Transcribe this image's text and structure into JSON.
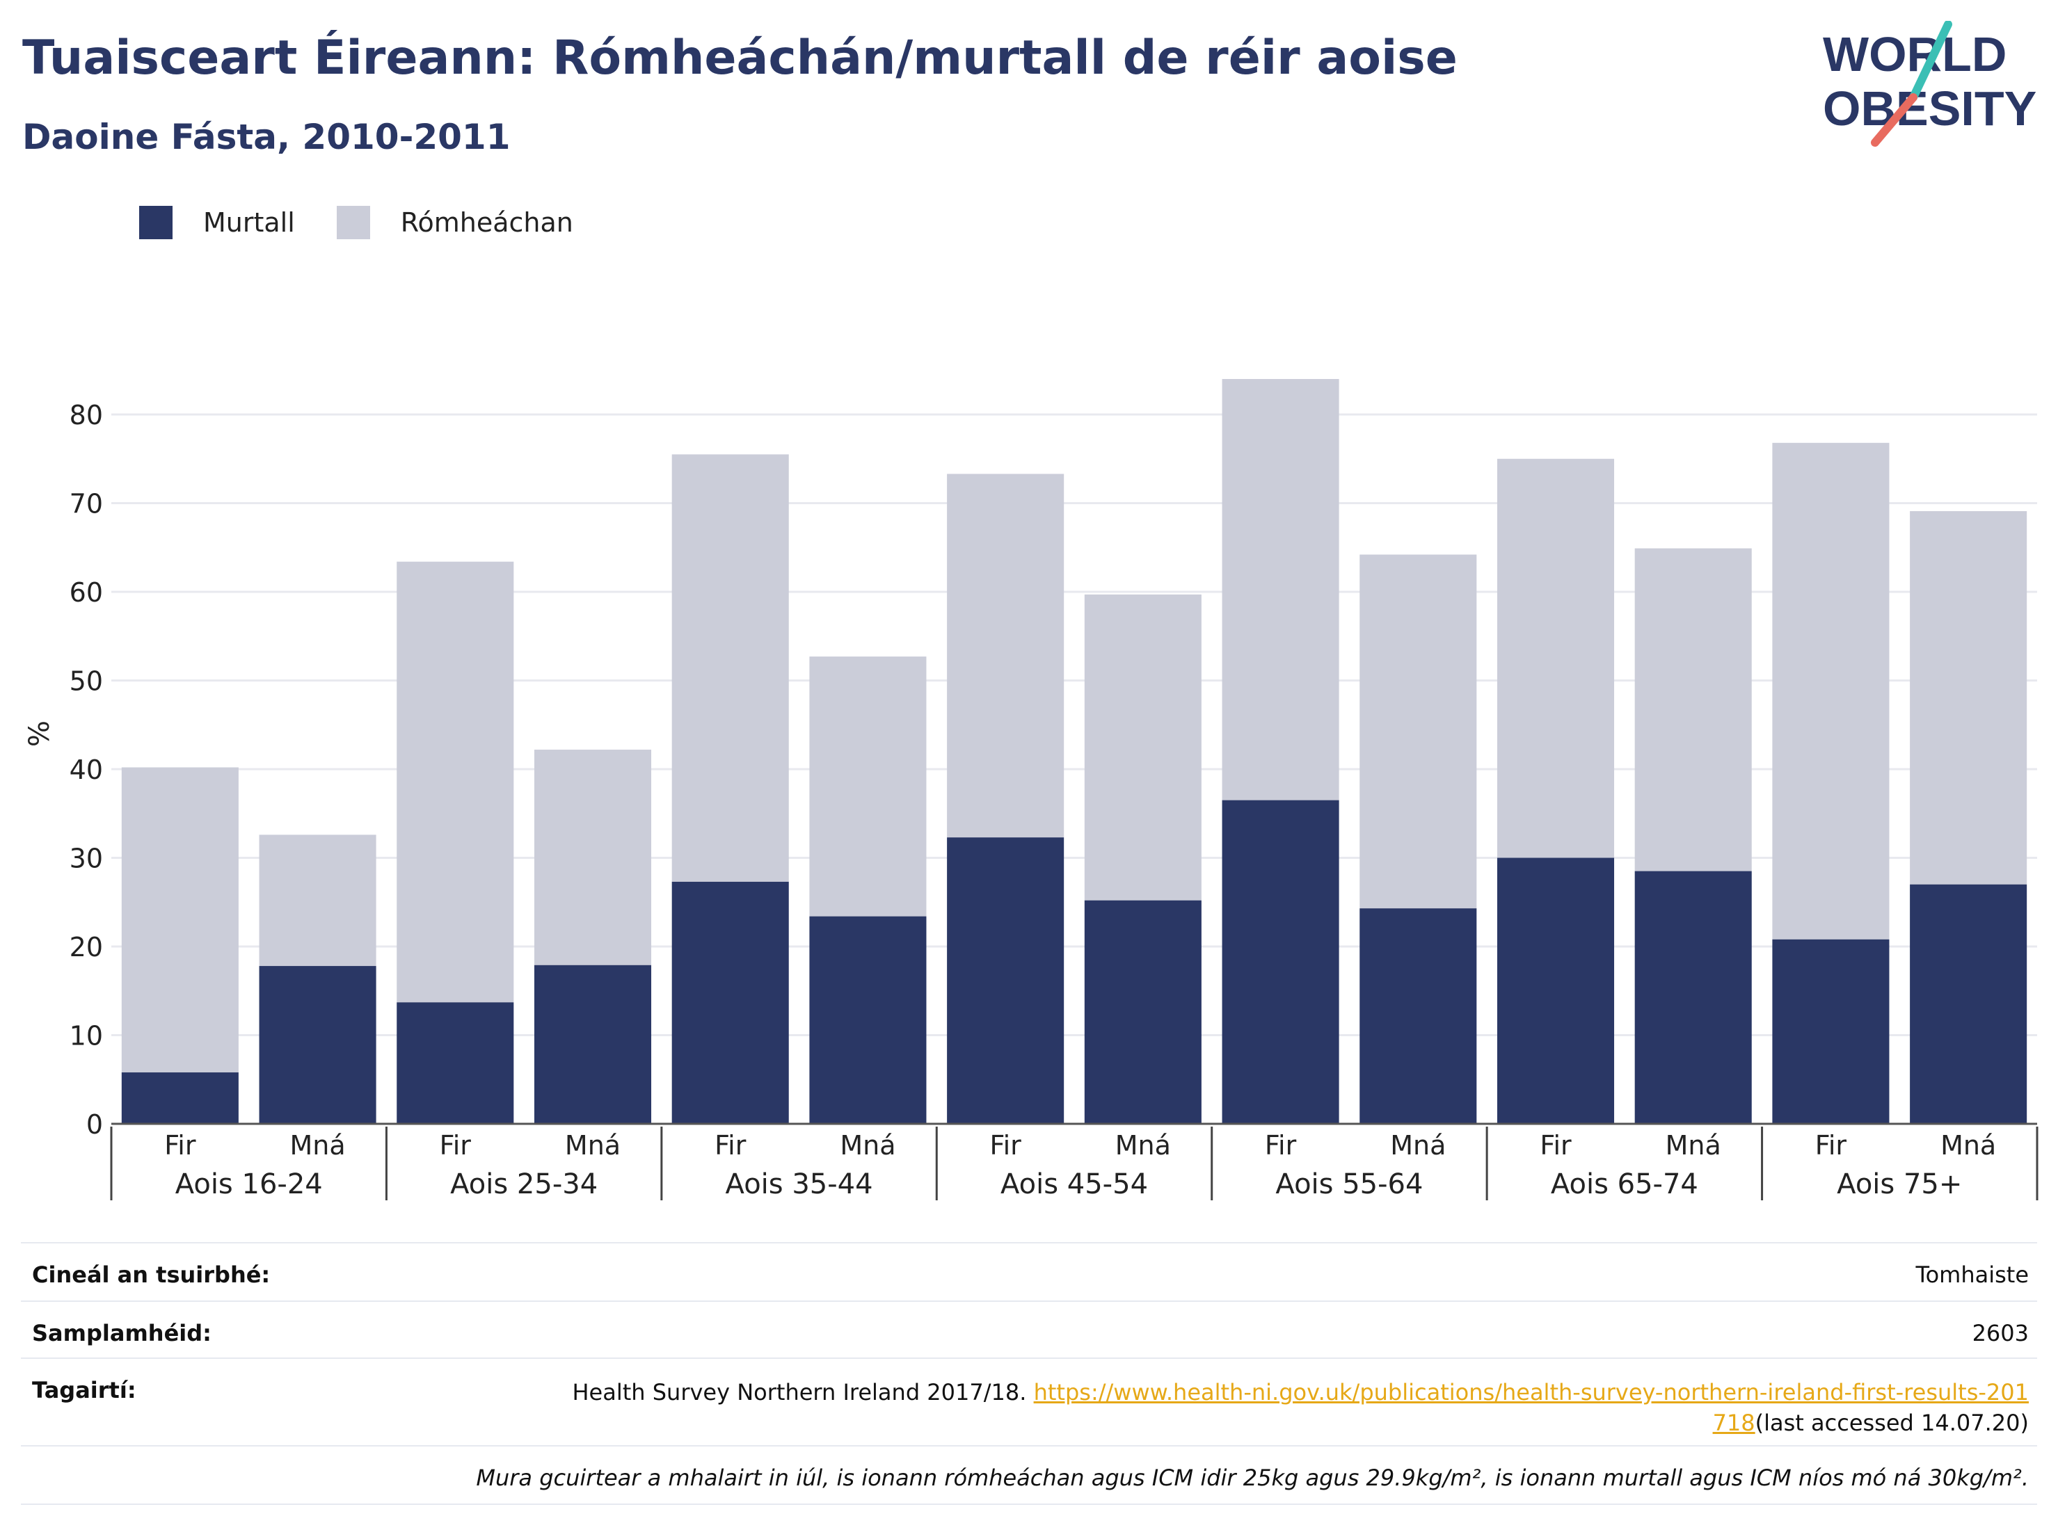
{
  "title": "Tuaisceart Éireann: Rómheáchán/murtall de réir aoise",
  "subtitle": "Daoine Fásta, 2010-2011",
  "logo": {
    "line1": "WORLD",
    "line2": "OBESITY",
    "colors": {
      "navy": "#2a3765",
      "teal": "#3bbfb5",
      "coral": "#e86b5f"
    }
  },
  "legend": [
    {
      "label": "Murtall",
      "color": "#2a3765"
    },
    {
      "label": "Rómheáchan",
      "color": "#cbcdd9"
    }
  ],
  "chart_data": {
    "type": "bar",
    "stacked": true,
    "ylabel": "%",
    "ylim": [
      0,
      85
    ],
    "yticks": [
      0,
      10,
      20,
      30,
      40,
      50,
      60,
      70,
      80
    ],
    "grid": true,
    "legend_position": "top-left",
    "groups": [
      "Aois 16-24",
      "Aois 25-34",
      "Aois 35-44",
      "Aois 45-54",
      "Aois 55-64",
      "Aois 65-74",
      "Aois 75+"
    ],
    "categories": [
      "Fir",
      "Mná",
      "Fir",
      "Mná",
      "Fir",
      "Mná",
      "Fir",
      "Mná",
      "Fir",
      "Mná",
      "Fir",
      "Mná",
      "Fir",
      "Mná"
    ],
    "series": [
      {
        "name": "Murtall",
        "color": "#2a3765",
        "values": [
          5.8,
          17.8,
          13.7,
          17.9,
          27.3,
          23.4,
          32.3,
          25.2,
          36.5,
          24.3,
          30.0,
          28.5,
          20.8,
          27.0
        ]
      },
      {
        "name": "Rómheáchan",
        "color": "#cbcdd9",
        "values": [
          34.4,
          14.8,
          49.7,
          24.3,
          48.2,
          29.3,
          41.0,
          34.5,
          47.5,
          39.9,
          45.0,
          36.4,
          56.0,
          42.1
        ]
      }
    ]
  },
  "info": {
    "survey_type_label": "Cineál an tsuirbhé:",
    "survey_type_value": "Tomhaiste",
    "sample_label": "Samplamhéid:",
    "sample_value": "2603",
    "references_label": "Tagairtí:",
    "references_text": "Health Survey Northern Ireland 2017/18. ",
    "references_link": "https://www.health-ni.gov.uk/publications/health-survey-northern-ireland-first-results-201718",
    "references_suffix": "(last accessed 14.07.20)",
    "note": "Mura gcuirtear a mhalairt in iúl, is ionann rómheáchan agus ICM idir 25kg agus 29.9kg/m², is ionann murtall agus ICM níos mó ná 30kg/m²."
  }
}
